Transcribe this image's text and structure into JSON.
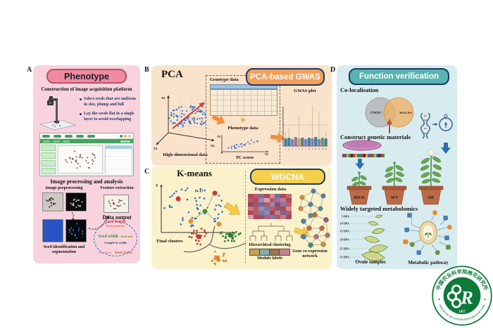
{
  "panels": {
    "A": {
      "label": "A",
      "title": "Phenotype",
      "platform_heading": "Construction of image acquisition platform",
      "bullets": [
        "Select seeds that are uniform in size, plump and full",
        "Lay the seeds flat in a single layer to avoid overlapping"
      ],
      "processing_heading": "Image processing and analysis",
      "preprocessing_label": "Image preprocessing",
      "feature_label": "Feature extraction",
      "output_heading": "Data output",
      "segmentation_label": "Seed identification and segmentation",
      "traits": [
        {
          "text": "Seed length",
          "color": "#d93a4e"
        },
        {
          "text": "Seed perimeter",
          "color": "#e2702a"
        },
        {
          "text": "Seed width",
          "color": "#2f8f46"
        },
        {
          "text": "Seed area",
          "color": "#8f7a22"
        },
        {
          "text": "Length-to-width",
          "color": "#1f3864"
        },
        {
          "text": "Roundness",
          "color": "#df7f9e"
        },
        {
          "text": "Seed index",
          "color": "#e0572a"
        }
      ],
      "colors": {
        "bg": "#f8d3dd",
        "pill_bg": "#ef8ba0",
        "pill_border": "#bb4f68",
        "pill_text": "#1c1c2e"
      }
    },
    "B": {
      "label": "B",
      "pca_title": "PCA",
      "gwas_pill": "PCA-based GWAS",
      "genotype_label": "Genotype data",
      "plus": "+",
      "phenotype_label": "Phenotype data",
      "pc_scores_label": "PC scores",
      "highdim_label": "High-dimensional data",
      "gwas_plot_label": "GWAS plot",
      "axes": {
        "x1": "X1",
        "x2": "X2",
        "x3": "X3",
        "y1": "Y1",
        "y2": "Y2"
      },
      "manhattan_ticks": [
        "1",
        "2",
        "3",
        "4",
        "5",
        "6",
        "7",
        "8",
        "9",
        "10",
        "11",
        "12",
        "13"
      ],
      "colors": {
        "bg": "#fae3cb",
        "pill_bg": "#f2a05a",
        "pill_border": "#1f3864",
        "pill_text": "#ffffff"
      }
    },
    "C": {
      "label": "C",
      "kmeans_title": "K-means",
      "wgcna_pill": "WGCNA",
      "axes": {
        "x": "X",
        "y": "Y"
      },
      "point_label": "(x, y)",
      "final_clusters_label": "Final clusters",
      "expression_label": "Expression data",
      "hierarchical_label": "Hierarchical clustering",
      "module_label": "Module labels",
      "network_label": "Gene co-expression network",
      "heatmap": [
        [
          "#b2485a",
          "#c25a66",
          "#8a6a9a",
          "#a84a58",
          "#d88a90",
          "#7a6a9e",
          "#b2485a",
          "#c66a72"
        ],
        [
          "#c25a66",
          "#b2485a",
          "#9a8ab8",
          "#d8a0a8",
          "#b85862",
          "#8a7aae",
          "#c87a82",
          "#a84a58"
        ],
        [
          "#8a4a5e",
          "#9a5a6a",
          "#6a6a9e",
          "#b85862",
          "#8a8ab8",
          "#9a4a58",
          "#7a7aae",
          "#c25a66"
        ],
        [
          "#c87a82",
          "#b85862",
          "#9a8ab0",
          "#7a7aae",
          "#c25a66",
          "#8a5a6e",
          "#b2485a",
          "#d88a90"
        ],
        [
          "#b2485a",
          "#c25a66",
          "#7a7aae",
          "#8a8ab8",
          "#9a4a58",
          "#c87a82",
          "#6a6a9e",
          "#b85862"
        ],
        [
          "#d8a0a8",
          "#b2485a",
          "#8a5a6e",
          "#c25a66",
          "#7a7aae",
          "#b85862",
          "#c87a82",
          "#9a4a58"
        ]
      ],
      "module_colors": [
        "#c9a05a",
        "#7fb0ad",
        "#96764f",
        "#c2848e"
      ],
      "colors": {
        "bg": "#fbf2cb",
        "pill_bg": "#f6cf4b",
        "pill_border": "#1f3864",
        "pill_text": "#ffffff"
      }
    },
    "D": {
      "label": "D",
      "title": "Function verification",
      "coloc_heading": "Co-localisation",
      "venn_left": "GWAS",
      "venn_right": "WGCNA",
      "construct_heading": "Construct genetic materials",
      "plant_labels": [
        "RNAi",
        "WT",
        "OE"
      ],
      "metabolomics_heading": "Widely targeted metabolomics",
      "dpa_labels": [
        "5 DPA",
        "10 DPA",
        "15 DPA",
        "20 DPA",
        "25 DPA",
        "35 DPA"
      ],
      "ovule_label": "Ovule samples",
      "pathway_label": "Metabolic pathway",
      "dna_strip": [
        [
          "#c0392b",
          "#2a6fc4",
          "#e8a020",
          "#2e8f4a",
          "#333333",
          "#c0392b",
          "#e8a020",
          "#2a6fc4",
          "#2e8f4a",
          "#c0392b",
          "#333333",
          "#e8a020",
          "#2a6fc4",
          "#c0392b",
          "#2e8f4a",
          "#e8a020",
          "#2a6fc4",
          "#333333",
          "#c0392b",
          "#2e8f4a"
        ]
      ],
      "colors": {
        "bg": "#d8ecef",
        "pill_bg": "#56b4b1",
        "pill_border": "#1f3864",
        "pill_text": "#ffffff"
      }
    }
  },
  "logo": {
    "top_text": "中国农业科学院棉花研究所",
    "bottom_text": "INSTITUTE OF COTTON RESEARCH OF CAAS",
    "year": "1957",
    "green": "#0e7a3a"
  }
}
